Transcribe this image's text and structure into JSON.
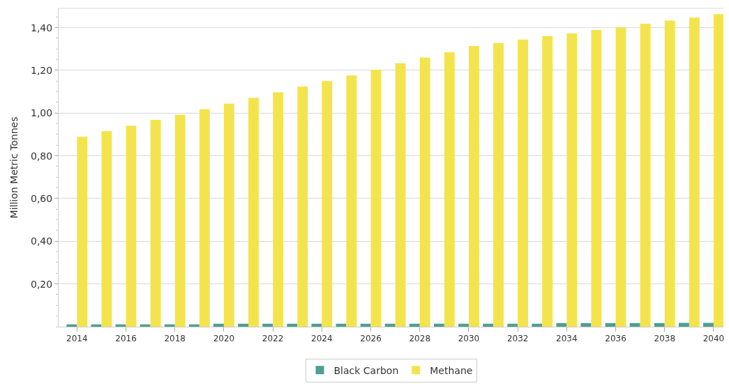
{
  "chart_data": {
    "type": "bar",
    "ylabel": "Million Metric Tonnes",
    "x": [
      2014,
      2015,
      2016,
      2017,
      2018,
      2019,
      2020,
      2021,
      2022,
      2023,
      2024,
      2025,
      2026,
      2027,
      2028,
      2029,
      2030,
      2031,
      2032,
      2033,
      2034,
      2035,
      2036,
      2037,
      2038,
      2039,
      2040
    ],
    "series": [
      {
        "name": "Black Carbon",
        "color": "#4e9e94",
        "values": [
          0.011,
          0.011,
          0.011,
          0.011,
          0.011,
          0.011,
          0.014,
          0.014,
          0.014,
          0.014,
          0.014,
          0.014,
          0.014,
          0.014,
          0.014,
          0.014,
          0.014,
          0.014,
          0.014,
          0.014,
          0.017,
          0.017,
          0.017,
          0.017,
          0.017,
          0.018,
          0.018
        ]
      },
      {
        "name": "Methane",
        "color": "#f3e44e",
        "values": [
          0.889,
          0.915,
          0.941,
          0.968,
          0.992,
          1.018,
          1.044,
          1.071,
          1.097,
          1.124,
          1.15,
          1.176,
          1.203,
          1.233,
          1.259,
          1.285,
          1.314,
          1.328,
          1.344,
          1.36,
          1.373,
          1.389,
          1.401,
          1.418,
          1.433,
          1.447,
          1.463
        ]
      }
    ],
    "xlim": [
      2013.25,
      2040.4
    ],
    "xticks": [
      2014,
      2016,
      2018,
      2020,
      2022,
      2024,
      2026,
      2028,
      2030,
      2032,
      2034,
      2036,
      2038,
      2040
    ],
    "ylim": [
      0,
      1.49
    ],
    "yticks": [
      {
        "value": 0.2,
        "label": "0,20"
      },
      {
        "value": 0.4,
        "label": "0,40"
      },
      {
        "value": 0.6,
        "label": "0,60"
      },
      {
        "value": 0.8,
        "label": "0,80"
      },
      {
        "value": 1.0,
        "label": "1,00"
      },
      {
        "value": 1.2,
        "label": "1,20"
      },
      {
        "value": 1.4,
        "label": "1,40"
      }
    ],
    "grid": "y",
    "legend": "bottom"
  }
}
